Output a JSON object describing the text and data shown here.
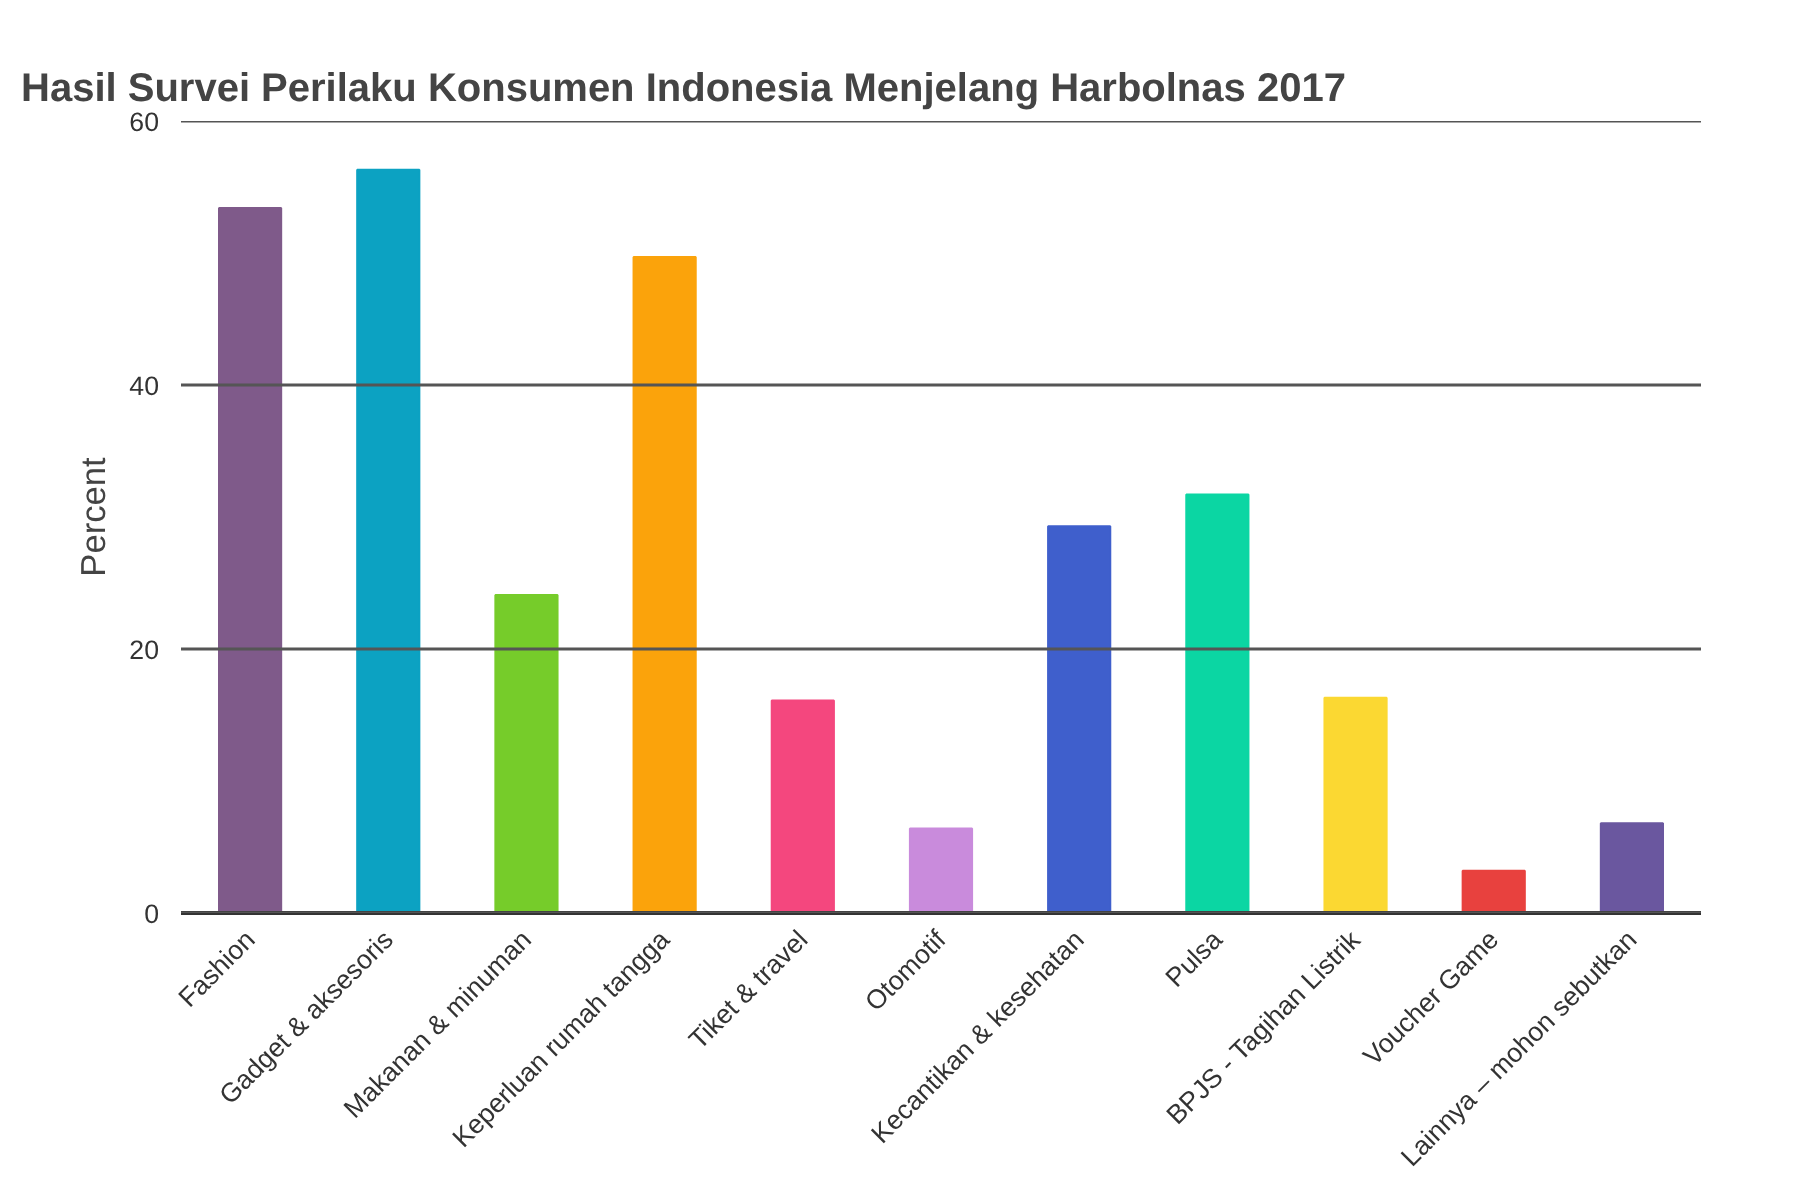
{
  "chart_data": {
    "type": "bar",
    "title": "Hasil Survei Perilaku Konsumen Indonesia Menjelang Harbolnas 2017",
    "ylabel": "Percent",
    "categories": [
      "Fashion",
      "Gadget & aksesoris",
      "Makanan & minuman",
      "Keperluan rumah tangga",
      "Tiket & travel",
      "Otomotif",
      "Kecantikan & kesehatan",
      "Pulsa",
      "BPJS - Tagihan Listrik",
      "Voucher Game",
      "Lainnya – mohon sebutkan"
    ],
    "values": [
      53.4,
      56.3,
      24.1,
      49.7,
      16.1,
      6.4,
      29.3,
      31.7,
      16.3,
      3.2,
      6.8
    ],
    "colors": [
      "#7f5a8a",
      "#0ca2c2",
      "#76cc2a",
      "#fba30b",
      "#f4477e",
      "#c98bdc",
      "#3f5fcc",
      "#0bd6a3",
      "#fbd832",
      "#e8413e",
      "#6a579f"
    ],
    "ylim": [
      0,
      60
    ],
    "yticks": [
      0,
      20,
      40,
      60
    ],
    "grid": "y"
  }
}
